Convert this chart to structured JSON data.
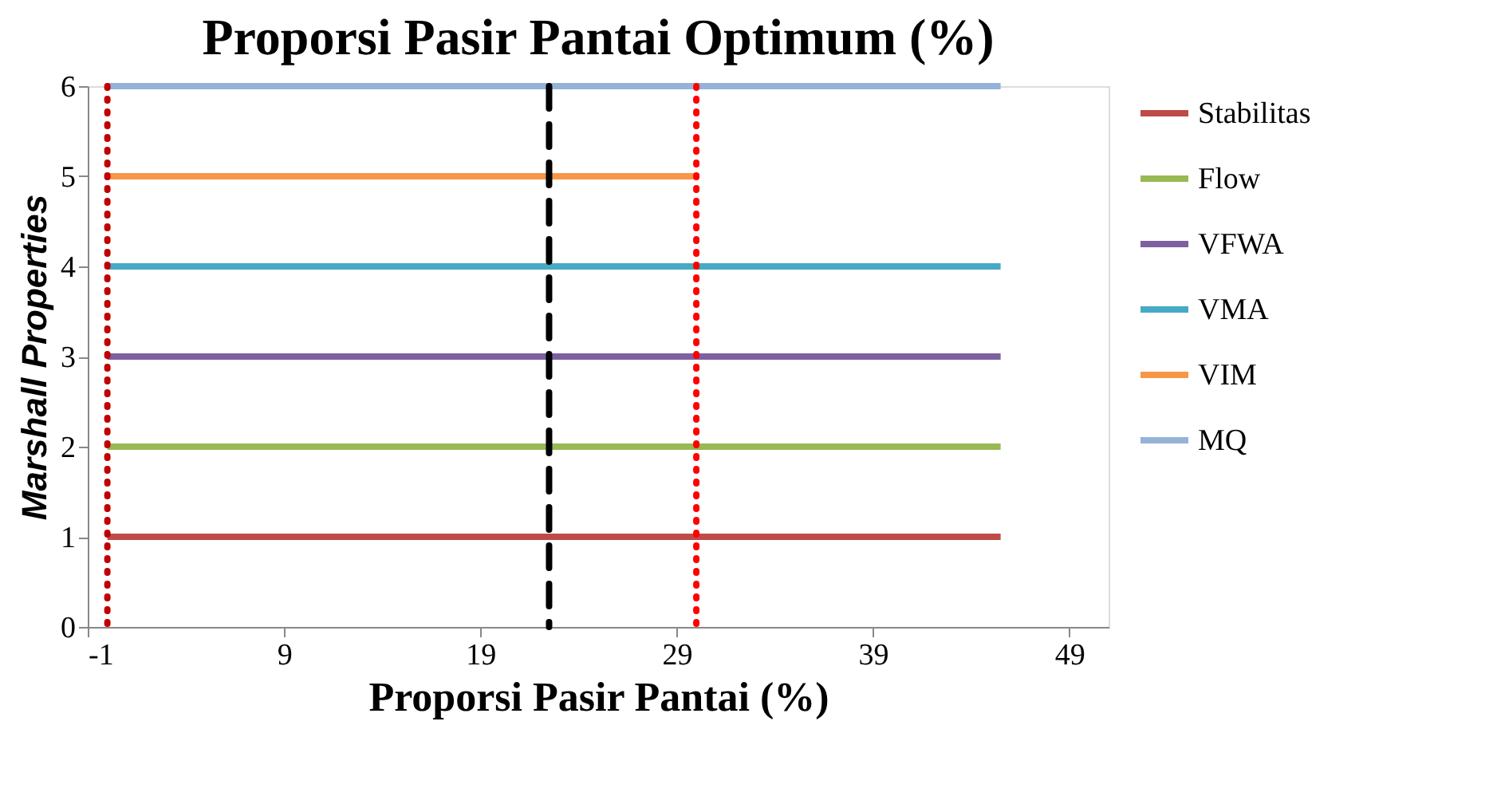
{
  "chart_data": {
    "type": "line",
    "title": "Proporsi Pasir Pantai Optimum (%)",
    "xlabel": "Proporsi Pasir Pantai (%)",
    "ylabel": "Marshall Properties",
    "xlim": [
      -1,
      51
    ],
    "xticks": [
      -1,
      9,
      19,
      29,
      39,
      49
    ],
    "ylim": [
      0,
      6
    ],
    "yticks": [
      0,
      1,
      2,
      3,
      4,
      5,
      6
    ],
    "grid": false,
    "legend": "right",
    "marker": "none",
    "line_style": "solid",
    "series": [
      {
        "name": "Stabilitas",
        "color": "#be4b48",
        "x": [
          0,
          45.5
        ],
        "values": [
          1,
          1
        ]
      },
      {
        "name": "Flow",
        "color": "#98b954",
        "x": [
          0,
          45.5
        ],
        "values": [
          2,
          2
        ]
      },
      {
        "name": "VFWA",
        "color": "#7d60a0",
        "x": [
          0,
          45.5
        ],
        "values": [
          3,
          3
        ]
      },
      {
        "name": "VMA",
        "color": "#46aac5",
        "x": [
          0,
          45.5
        ],
        "values": [
          4,
          4
        ]
      },
      {
        "name": "VIM",
        "color": "#f79646",
        "x": [
          0,
          30
        ],
        "values": [
          5,
          5
        ]
      },
      {
        "name": "MQ",
        "color": "#95b3d7",
        "x": [
          0,
          45.5
        ],
        "values": [
          6,
          6
        ]
      }
    ],
    "ref_lines": [
      {
        "axis": "x",
        "value": 0,
        "color": "#c00000",
        "line_style": "dotted"
      },
      {
        "axis": "x",
        "value": 30,
        "color": "#ff0000",
        "line_style": "dotted"
      },
      {
        "axis": "x",
        "value": 22.5,
        "color": "#000000",
        "line_style": "dashed"
      }
    ]
  }
}
